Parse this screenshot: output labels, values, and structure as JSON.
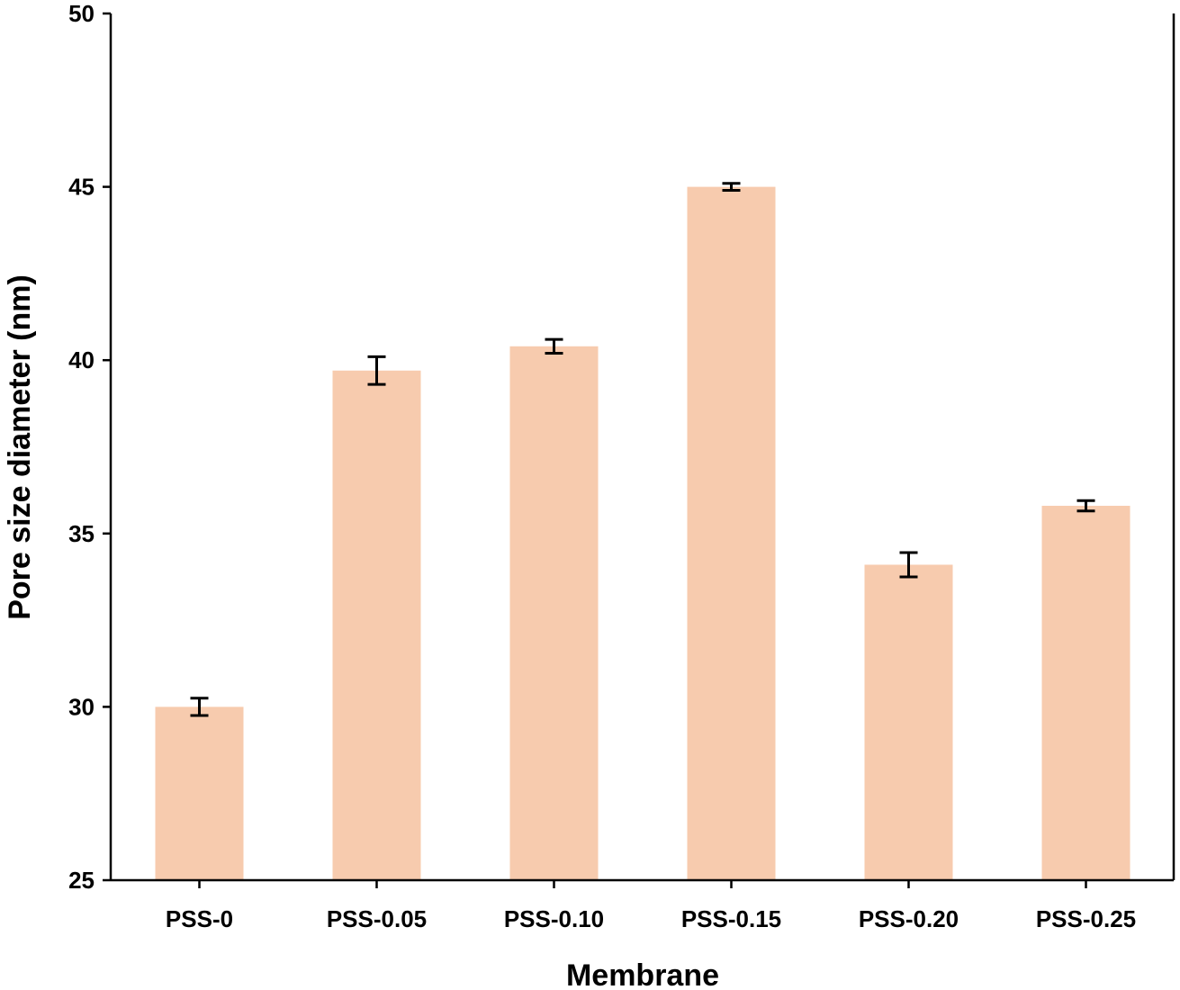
{
  "chart_data": {
    "type": "bar",
    "title": "",
    "xlabel": "Membrane",
    "ylabel": "Pore size diameter (nm)",
    "categories": [
      "PSS-0",
      "PSS-0.05",
      "PSS-0.10",
      "PSS-0.15",
      "PSS-0.20",
      "PSS-0.25"
    ],
    "values": [
      30.0,
      39.7,
      40.4,
      45.0,
      34.1,
      35.8
    ],
    "errors": [
      0.25,
      0.4,
      0.2,
      0.1,
      0.35,
      0.15
    ],
    "ylim": [
      25,
      50
    ],
    "yticks": [
      "25",
      "30",
      "35",
      "40",
      "45",
      "50"
    ],
    "grid": false,
    "bar_color": "#f7cbae",
    "error_color": "#000000"
  }
}
